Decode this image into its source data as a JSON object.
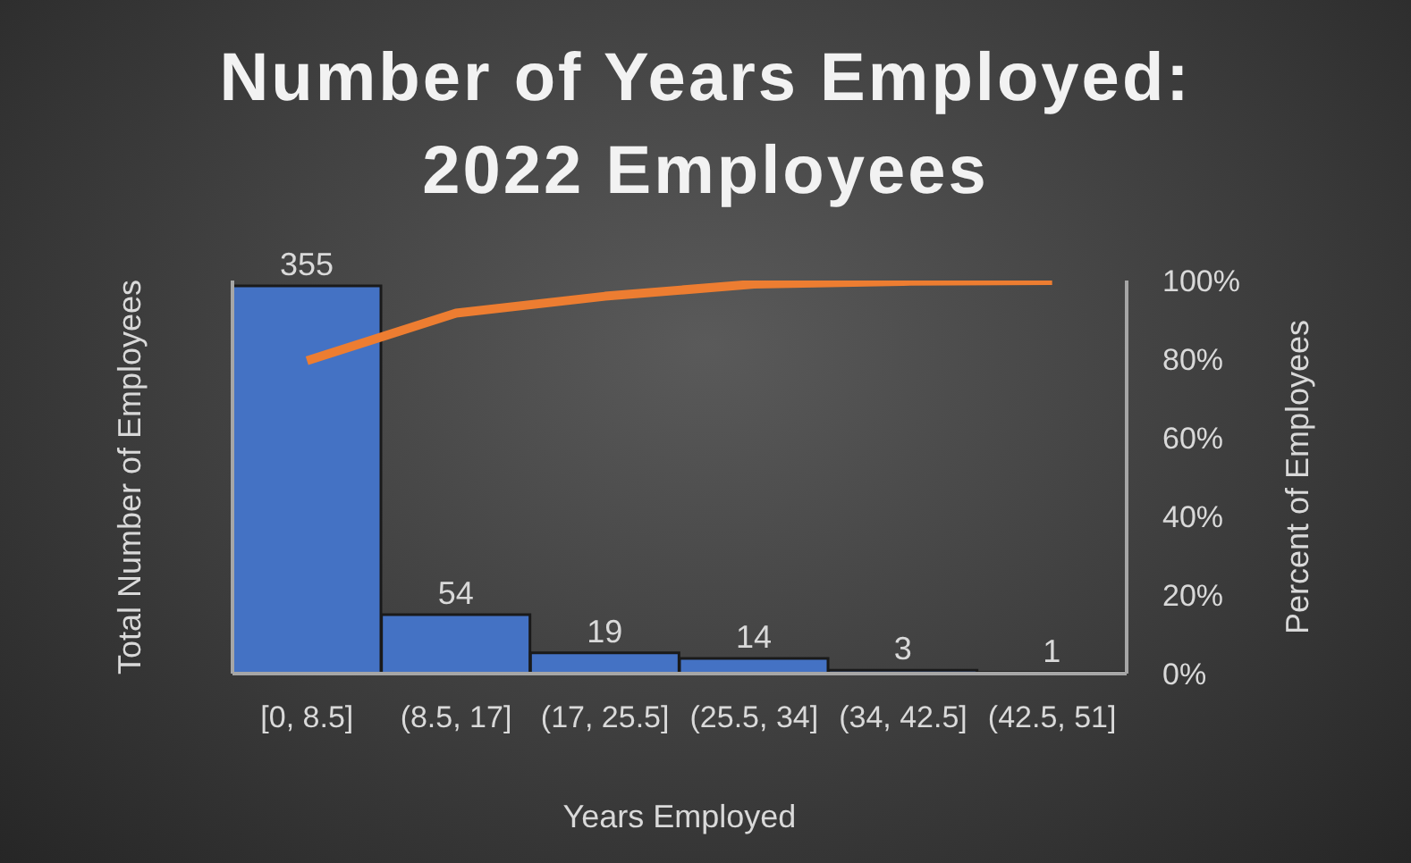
{
  "chart_data": {
    "type": "bar",
    "title": "Number of Years Employed: 2022 Employees",
    "xlabel": "Years Employed",
    "ylabel": "Total Number of Employees",
    "y2label": "Percent of Employees",
    "categories": [
      "[0, 8.5]",
      "(8.5, 17]",
      "(17, 25.5]",
      "(25.5, 34]",
      "(34, 42.5]",
      "(42.5, 51]"
    ],
    "series": [
      {
        "color": "#4472c4",
        "values": [
          355,
          54,
          19,
          14,
          3,
          1
        ],
        "value_labels": [
          "355",
          "54",
          "19",
          "14",
          "3",
          "1"
        ]
      },
      {
        "type": "line",
        "axis": "y2",
        "color": "#ed7d31",
        "values": [
          79.6,
          91.7,
          96.0,
          99.1,
          99.8,
          100
        ]
      }
    ],
    "y2lim": [
      0,
      100
    ],
    "y2ticks": [
      {
        "value": 0,
        "label": "0%"
      },
      {
        "value": 20,
        "label": "20%"
      },
      {
        "value": 40,
        "label": "40%"
      },
      {
        "value": 60,
        "label": "60%"
      },
      {
        "value": 80,
        "label": "80%"
      },
      {
        "value": 100,
        "label": "100%"
      }
    ],
    "grid": false,
    "legend": false,
    "marker": "none"
  }
}
